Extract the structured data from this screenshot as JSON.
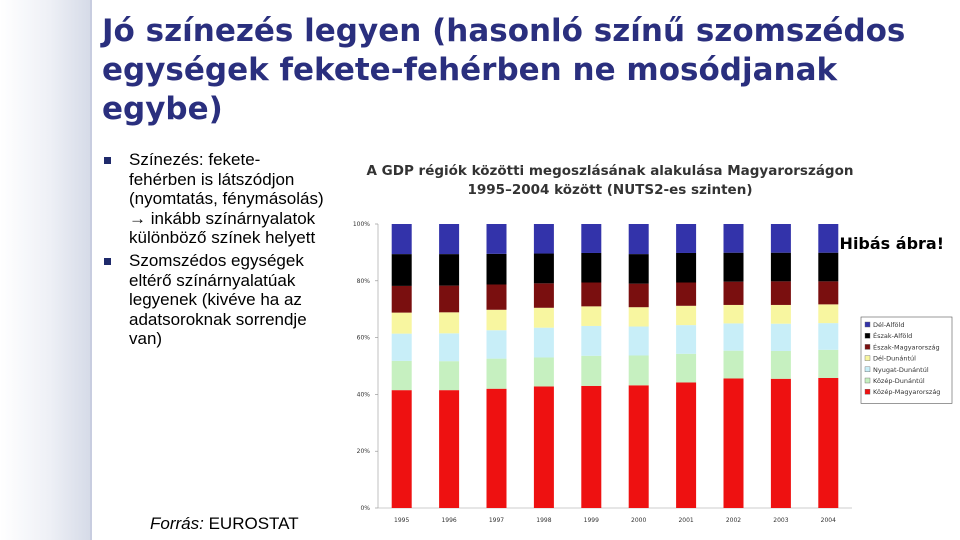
{
  "slide": {
    "title": "Jó színezés legyen (hasonló színű szomszédos egységek fekete-fehérben ne mosódjanak egybe)",
    "bullets": [
      "Színezés: fekete-fehérben is látszódjon (nyomtatás, fénymásolás) → inkább színárnyalatok különböző színek helyett",
      "Szomszédos egységek eltérő színárnyalatúak legyenek (kivéve ha az adatsoroknak sorrendje van)"
    ],
    "source_prefix": "Forrás:",
    "source_name": "EUROSTAT"
  },
  "chart_data": {
    "type": "bar",
    "stacked": true,
    "percent": true,
    "title": [
      "A GDP régiók közötti megoszlásának alakulása Magyarországon",
      "1995–2004 között (NUTS2-es szinten)"
    ],
    "annotation": "Hibás ábra!",
    "categories": [
      "1995",
      "1996",
      "1997",
      "1998",
      "1999",
      "2000",
      "2001",
      "2002",
      "2003",
      "2004"
    ],
    "yticks": [
      "0%",
      "20%",
      "40%",
      "60%",
      "80%",
      "100%"
    ],
    "ylim": [
      0,
      100
    ],
    "legend_position": "right",
    "series": [
      {
        "name": "Közép-Magyarország",
        "color": "#ee1111",
        "values": [
          41.5,
          41.5,
          42.0,
          42.8,
          43.0,
          43.2,
          44.2,
          45.6,
          45.5,
          45.8
        ]
      },
      {
        "name": "Közép-Dunántúl",
        "color": "#c6f0c0",
        "values": [
          10.3,
          10.2,
          10.6,
          10.2,
          10.6,
          10.5,
          10.1,
          9.8,
          9.8,
          9.9
        ]
      },
      {
        "name": "Nyugat-Dunántúl",
        "color": "#c8eef8",
        "values": [
          9.6,
          9.8,
          10.0,
          10.5,
          10.5,
          10.2,
          10.1,
          9.6,
          9.6,
          9.4
        ]
      },
      {
        "name": "Dél-Dunántúl",
        "color": "#f8f6a0",
        "values": [
          7.4,
          7.4,
          7.2,
          7.0,
          6.9,
          6.8,
          6.8,
          6.5,
          6.6,
          6.6
        ]
      },
      {
        "name": "Észak-Magyarország",
        "color": "#7a0f0f",
        "values": [
          9.4,
          9.4,
          8.9,
          8.6,
          8.4,
          8.3,
          8.2,
          8.2,
          8.3,
          8.1
        ]
      },
      {
        "name": "Észak-Alföld",
        "color": "#000000",
        "values": [
          11.2,
          11.1,
          10.8,
          10.5,
          10.4,
          10.4,
          10.4,
          10.2,
          10.1,
          10.1
        ]
      },
      {
        "name": "Dél-Alföld",
        "color": "#3333aa",
        "values": [
          10.6,
          10.6,
          10.5,
          10.4,
          10.2,
          10.6,
          10.2,
          10.1,
          10.1,
          10.1
        ]
      }
    ]
  }
}
